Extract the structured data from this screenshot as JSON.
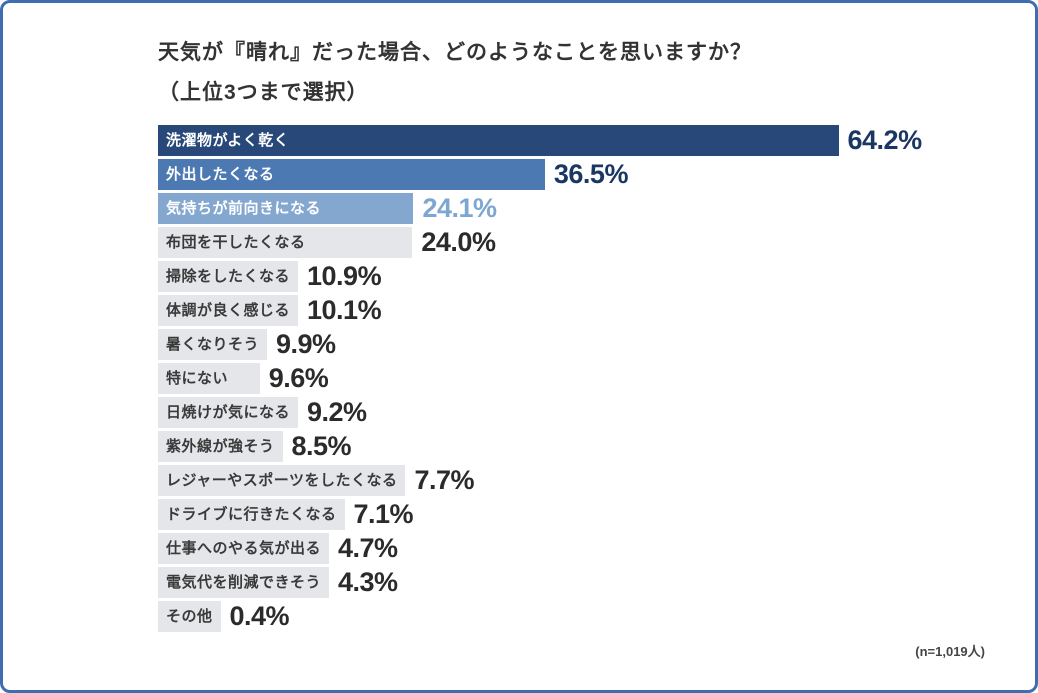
{
  "header": {
    "title_line1": "天気が『晴れ』だった場合、どのようなことを思いますか？",
    "title_line2": "（上位3つまで選択）"
  },
  "footer": {
    "sample_note": "(n=1,019人)"
  },
  "colors": {
    "border": "#3e6db0",
    "bar_rank1": "#274879",
    "bar_rank2": "#4d79b3",
    "bar_rank3": "#84a7d0",
    "bar_default": "#e4e6e9",
    "value_rank1": "#1a3764",
    "value_rank2": "#1a3764",
    "value_rank3": "#7ea6d3",
    "value_default": "#2b2b2b"
  },
  "chart_data": {
    "type": "bar",
    "orientation": "horizontal",
    "title": "天気が『晴れ』だった場合、どのようなことを思いますか？（上位3つまで選択）",
    "xlim": [
      0,
      70
    ],
    "value_unit": "%",
    "grid": false,
    "legend": false,
    "sample_note": "(n=1,019人)",
    "categories": [
      "洗濯物がよく乾く",
      "外出したくなる",
      "気持ちが前向きになる",
      "布団を干したくなる",
      "掃除をしたくなる",
      "体調が良く感じる",
      "暑くなりそう",
      "特にない",
      "日焼けが気になる",
      "紫外線が強そう",
      "レジャーやスポーツをしたくなる",
      "ドライブに行きたくなる",
      "仕事へのやる気が出る",
      "電気代を削減できそう",
      "その他"
    ],
    "values": [
      64.2,
      36.5,
      24.1,
      24.0,
      10.9,
      10.1,
      9.9,
      9.6,
      9.2,
      8.5,
      7.7,
      7.1,
      4.7,
      4.3,
      0.4
    ],
    "items": [
      {
        "label": "洗濯物がよく乾く",
        "value": 64.2,
        "display": "64.2%",
        "bar_color": "#274879",
        "label_color": "#ffffff",
        "value_color": "#1a3764"
      },
      {
        "label": "外出したくなる",
        "value": 36.5,
        "display": "36.5%",
        "bar_color": "#4d79b3",
        "label_color": "#ffffff",
        "value_color": "#1a3764"
      },
      {
        "label": "気持ちが前向きになる",
        "value": 24.1,
        "display": "24.1%",
        "bar_color": "#84a7d0",
        "label_color": "#ffffff",
        "value_color": "#7ea6d3"
      },
      {
        "label": "布団を干したくなる",
        "value": 24.0,
        "display": "24.0%",
        "bar_color": "#e4e6e9",
        "label_color": "#3a3a3a",
        "value_color": "#2b2b2b"
      },
      {
        "label": "掃除をしたくなる",
        "value": 10.9,
        "display": "10.9%",
        "bar_color": "#e4e6e9",
        "label_color": "#3a3a3a",
        "value_color": "#2b2b2b"
      },
      {
        "label": "体調が良く感じる",
        "value": 10.1,
        "display": "10.1%",
        "bar_color": "#e4e6e9",
        "label_color": "#3a3a3a",
        "value_color": "#2b2b2b"
      },
      {
        "label": "暑くなりそう",
        "value": 9.9,
        "display": "9.9%",
        "bar_color": "#e4e6e9",
        "label_color": "#3a3a3a",
        "value_color": "#2b2b2b"
      },
      {
        "label": "特にない",
        "value": 9.6,
        "display": "9.6%",
        "bar_color": "#e4e6e9",
        "label_color": "#3a3a3a",
        "value_color": "#2b2b2b"
      },
      {
        "label": "日焼けが気になる",
        "value": 9.2,
        "display": "9.2%",
        "bar_color": "#e4e6e9",
        "label_color": "#3a3a3a",
        "value_color": "#2b2b2b"
      },
      {
        "label": "紫外線が強そう",
        "value": 8.5,
        "display": "8.5%",
        "bar_color": "#e4e6e9",
        "label_color": "#3a3a3a",
        "value_color": "#2b2b2b"
      },
      {
        "label": "レジャーやスポーツをしたくなる",
        "value": 7.7,
        "display": "7.7%",
        "bar_color": "#e4e6e9",
        "label_color": "#3a3a3a",
        "value_color": "#2b2b2b"
      },
      {
        "label": "ドライブに行きたくなる",
        "value": 7.1,
        "display": "7.1%",
        "bar_color": "#e4e6e9",
        "label_color": "#3a3a3a",
        "value_color": "#2b2b2b"
      },
      {
        "label": "仕事へのやる気が出る",
        "value": 4.7,
        "display": "4.7%",
        "bar_color": "#e4e6e9",
        "label_color": "#3a3a3a",
        "value_color": "#2b2b2b"
      },
      {
        "label": "電気代を削減できそう",
        "value": 4.3,
        "display": "4.3%",
        "bar_color": "#e4e6e9",
        "label_color": "#3a3a3a",
        "value_color": "#2b2b2b"
      },
      {
        "label": "その他",
        "value": 0.4,
        "display": "0.4%",
        "bar_color": "#e4e6e9",
        "label_color": "#3a3a3a",
        "value_color": "#2b2b2b"
      }
    ]
  }
}
